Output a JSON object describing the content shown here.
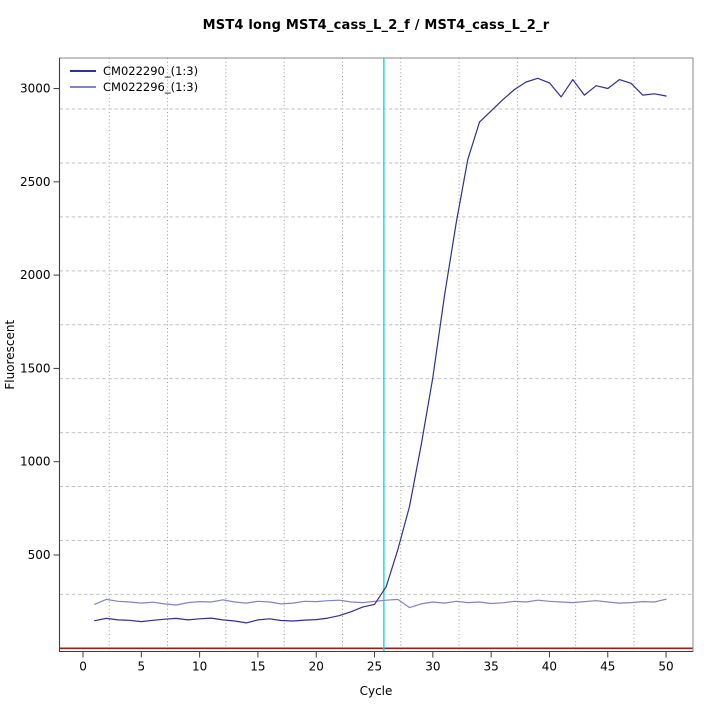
{
  "window": {
    "background": "#ffffff"
  },
  "chart_data": {
    "type": "line",
    "title": "MST4 long MST4_cass_L_2_f / MST4_cass_L_2_r",
    "xlabel": "Cycle",
    "ylabel": "Fluorescent",
    "x_ticks": [
      0,
      5,
      10,
      15,
      20,
      25,
      30,
      35,
      40,
      45,
      50
    ],
    "y_ticks": [
      500,
      1000,
      1500,
      2000,
      2500,
      3000
    ],
    "xlim": [
      -2.016,
      52.31
    ],
    "ylim": [
      -17.2,
      3163.6
    ],
    "grid": true,
    "v_grid": [
      2.25,
      7.25,
      12.25,
      17.25,
      22.25,
      27.25,
      32.25,
      37.25,
      42.25,
      47.25
    ],
    "h_grid": [
      289,
      578,
      867,
      1156,
      1445,
      1734,
      2023,
      2312,
      2601,
      2890
    ],
    "legend_position": "top-left",
    "cycles": [
      1,
      2,
      3,
      4,
      5,
      6,
      7,
      8,
      9,
      10,
      11,
      12,
      13,
      14,
      15,
      16,
      17,
      18,
      19,
      20,
      21,
      22,
      23,
      24,
      25,
      26,
      27,
      28,
      29,
      30,
      31,
      32,
      33,
      34,
      35,
      36,
      37,
      38,
      39,
      40,
      41,
      42,
      43,
      44,
      45,
      46,
      47,
      48,
      49,
      50
    ],
    "series": [
      {
        "name": "CM022290_(1:3)",
        "color": "#2f2f9d",
        "values": [
          148,
          160,
          152,
          150,
          143,
          150,
          156,
          160,
          152,
          158,
          162,
          152,
          146,
          136,
          152,
          158,
          149,
          146,
          151,
          154,
          162,
          175,
          196,
          222,
          235,
          330,
          530,
          760,
          1090,
          1450,
          1890,
          2280,
          2620,
          2820,
          2880,
          2940,
          2995,
          3035,
          3055,
          3030,
          2955,
          3048,
          2965,
          3015,
          3000,
          3048,
          3028,
          2965,
          2972,
          2960
        ]
      },
      {
        "name": "CM022296_(1:3)",
        "color": "#8282cd",
        "values": [
          236,
          262,
          252,
          248,
          242,
          247,
          238,
          232,
          245,
          250,
          248,
          260,
          248,
          242,
          252,
          248,
          238,
          242,
          252,
          250,
          255,
          258,
          248,
          245,
          252,
          258,
          262,
          218,
          238,
          248,
          242,
          252,
          245,
          248,
          240,
          244,
          252,
          248,
          258,
          252,
          248,
          245,
          250,
          255,
          248,
          242,
          245,
          250,
          248,
          263
        ]
      }
    ],
    "threshold_line": {
      "x": 25.8,
      "color": "#00dfee"
    },
    "baseline_line": {
      "y": 0,
      "color": "#9b1e1e"
    },
    "colors": {
      "box": "#8a8a8a",
      "axis": "#3f3f3f",
      "h_grid": "#c2c2c2",
      "v_grid": "#909090",
      "text": "#000000"
    }
  }
}
